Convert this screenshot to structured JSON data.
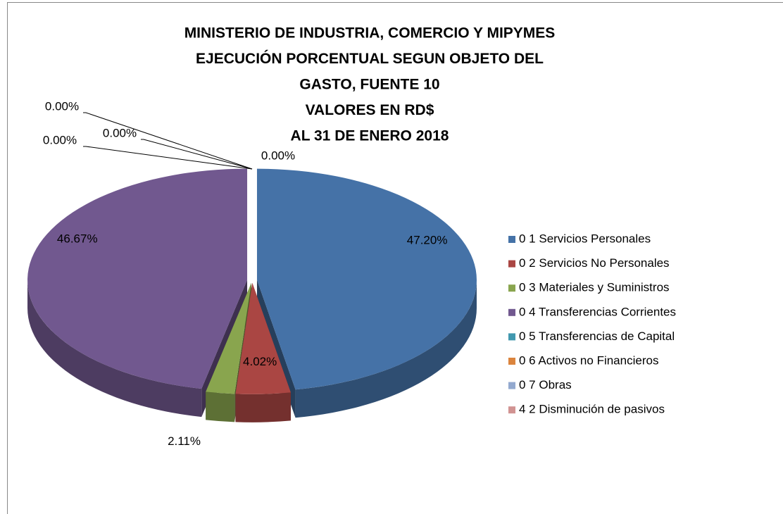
{
  "chart_data": {
    "type": "pie3d",
    "title": [
      "MINISTERIO DE INDUSTRIA,  COMERCIO Y MIPYMES",
      "EJECUCIÓN  PORCENTUAL SEGUN OBJETO DEL",
      "GASTO,    FUENTE   10",
      "VALORES EN RD$",
      "AL  31 DE ENERO  2018"
    ],
    "categories": [
      "0 1  Servicios Personales",
      "0 2  Servicios No Personales",
      "0 3  Materiales y Suministros",
      "0 4  Transferencias Corrientes",
      "0 5  Transferencias de Capital",
      "0 6  Activos no Financieros",
      "0 7  Obras",
      "4 2  Disminución de pasivos"
    ],
    "values": [
      47.2,
      4.02,
      2.11,
      46.67,
      0,
      0,
      0,
      0
    ],
    "value_labels": [
      "47.20%",
      "4.02%",
      "2.11%",
      "46.67%",
      "0.00%",
      "0.00%",
      "0.00%",
      "0.00%"
    ],
    "colors": [
      "#4572a7",
      "#aa4643",
      "#89a54e",
      "#71588f",
      "#4198af",
      "#db843d",
      "#93a9cf",
      "#d19392"
    ],
    "legend": "right"
  }
}
